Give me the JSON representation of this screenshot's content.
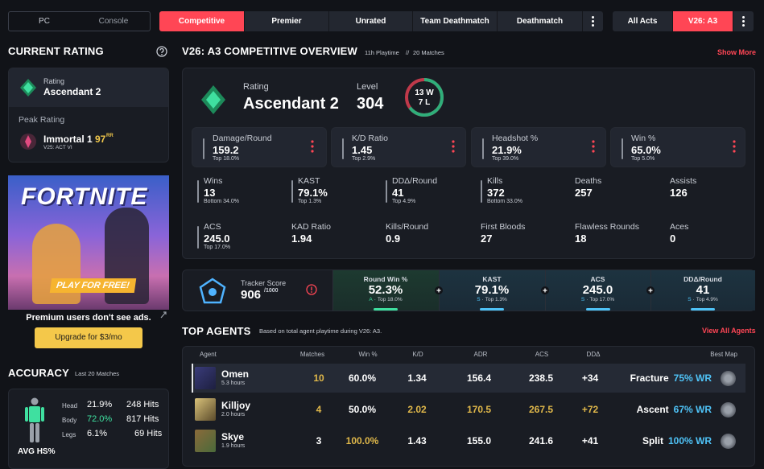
{
  "nav": {
    "platforms": [
      "PC",
      "Console"
    ],
    "modes": [
      "Competitive",
      "Premier",
      "Unrated",
      "Team Deathmatch",
      "Deathmatch"
    ],
    "acts": [
      "All Acts",
      "V26: A3"
    ]
  },
  "current_rating": {
    "heading": "CURRENT RATING",
    "rating_label": "Rating",
    "rating": "Ascendant 2",
    "peak_label": "Peak Rating",
    "peak_rank": "Immortal 1",
    "peak_rr": "97",
    "rr_unit": "RR",
    "peak_act": "V25: ACT VI"
  },
  "ad": {
    "headline": "FORTNITE",
    "cta": "PLAY FOR FREE!",
    "note": "Premium users don't see ads.",
    "upgrade": "Upgrade for $3/mo"
  },
  "accuracy": {
    "heading": "ACCURACY",
    "subtitle": "Last 20 Matches",
    "rows": [
      {
        "part": "Head",
        "pct": "21.9%",
        "hits": "248 Hits"
      },
      {
        "part": "Body",
        "pct": "72.0%",
        "hits": "817 Hits"
      },
      {
        "part": "Legs",
        "pct": "6.1%",
        "hits": "69 Hits"
      }
    ],
    "avg_label": "AVG HS%"
  },
  "overview": {
    "title": "V26: A3 COMPETITIVE OVERVIEW",
    "playtime": "11h Playtime",
    "separator": "//",
    "matches": "20 Matches",
    "show_more": "Show More",
    "rating_label": "Rating",
    "rating": "Ascendant 2",
    "level_label": "Level",
    "level": "304",
    "wins": "13 W",
    "losses": "7 L",
    "main_stats": [
      {
        "label": "Damage/Round",
        "value": "159.2",
        "rank": "Top 18.0%"
      },
      {
        "label": "K/D Ratio",
        "value": "1.45",
        "rank": "Top 2.9%"
      },
      {
        "label": "Headshot %",
        "value": "21.9%",
        "rank": "Top 39.0%"
      },
      {
        "label": "Win %",
        "value": "65.0%",
        "rank": "Top 5.0%"
      }
    ],
    "stats": [
      {
        "label": "Wins",
        "value": "13",
        "rank": "Bottom 34.0%"
      },
      {
        "label": "KAST",
        "value": "79.1%",
        "rank": "Top 1.3%"
      },
      {
        "label": "DDΔ/Round",
        "value": "41",
        "rank": "Top 4.9%"
      },
      {
        "label": "Kills",
        "value": "372",
        "rank": "Bottom 33.0%"
      },
      {
        "label": "Deaths",
        "value": "257"
      },
      {
        "label": "Assists",
        "value": "126"
      },
      {
        "label": "ACS",
        "value": "245.0",
        "rank": "Top 17.0%"
      },
      {
        "label": "KAD Ratio",
        "value": "1.94"
      },
      {
        "label": "Kills/Round",
        "value": "0.9"
      },
      {
        "label": "First Bloods",
        "value": "27"
      },
      {
        "label": "Flawless Rounds",
        "value": "18"
      },
      {
        "label": "Aces",
        "value": "0"
      }
    ]
  },
  "tracker": {
    "label": "Tracker Score",
    "score": "906",
    "max": "/1000",
    "sep": "·",
    "cells": [
      {
        "label": "Round Win %",
        "value": "52.3%",
        "grade": "A",
        "rank": "Top 18.0%"
      },
      {
        "label": "KAST",
        "value": "79.1%",
        "grade": "S",
        "rank": "Top 1.3%"
      },
      {
        "label": "ACS",
        "value": "245.0",
        "grade": "S",
        "rank": "Top 17.0%"
      },
      {
        "label": "DDΔ/Round",
        "value": "41",
        "grade": "S",
        "rank": "Top 4.9%"
      }
    ]
  },
  "agents": {
    "heading": "TOP AGENTS",
    "note": "Based on total agent playtime during V26: A3.",
    "view_all": "View All Agents",
    "columns": [
      "Agent",
      "Matches",
      "Win %",
      "K/D",
      "ADR",
      "ACS",
      "DDΔ",
      "Best Map"
    ],
    "rows": [
      {
        "name": "Omen",
        "hours": "5.3 hours",
        "matches": "10",
        "win": "60.0%",
        "kd": "1.34",
        "adr": "156.4",
        "acs": "238.5",
        "dd": "+34",
        "map": "Fracture",
        "map_wr": "75% WR"
      },
      {
        "name": "Killjoy",
        "hours": "2.0 hours",
        "matches": "4",
        "win": "50.0%",
        "kd": "2.02",
        "adr": "170.5",
        "acs": "267.5",
        "dd": "+72",
        "map": "Ascent",
        "map_wr": "67% WR"
      },
      {
        "name": "Skye",
        "hours": "1.9 hours",
        "matches": "3",
        "win": "100.0%",
        "kd": "1.43",
        "adr": "155.0",
        "acs": "241.6",
        "dd": "+41",
        "map": "Split",
        "map_wr": "100% WR"
      }
    ]
  }
}
